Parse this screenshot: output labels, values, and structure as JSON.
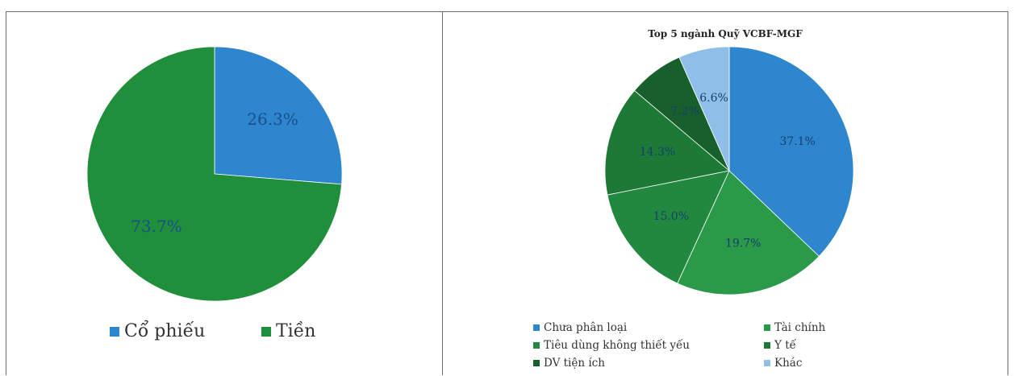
{
  "chart_data": [
    {
      "type": "pie",
      "title": "",
      "categories": [
        "Cổ phiếu",
        "Tiền"
      ],
      "values": [
        26.3,
        73.7
      ],
      "labels": [
        "26.3%",
        "73.7%"
      ],
      "colors": [
        "#2e86cf",
        "#1f8f3c"
      ],
      "legend": "bottom"
    },
    {
      "type": "pie",
      "title": "Top 5 ngành Quỹ VCBF-MGF",
      "categories": [
        "Chưa phân loại",
        "Tài chính",
        "Tiêu dùng không thiết yếu",
        "Y tế",
        "DV tiện ích",
        "Khác"
      ],
      "values": [
        37.1,
        19.7,
        15.0,
        14.3,
        7.2,
        6.6
      ],
      "labels": [
        "37.1%",
        "19.7%",
        "15.0%",
        "14.3%",
        "7.2%",
        "6.6%"
      ],
      "colors": [
        "#2e86cf",
        "#2a9a48",
        "#23883f",
        "#1d7a36",
        "#175f2b",
        "#8fbfe8"
      ],
      "legend": "bottom"
    }
  ]
}
